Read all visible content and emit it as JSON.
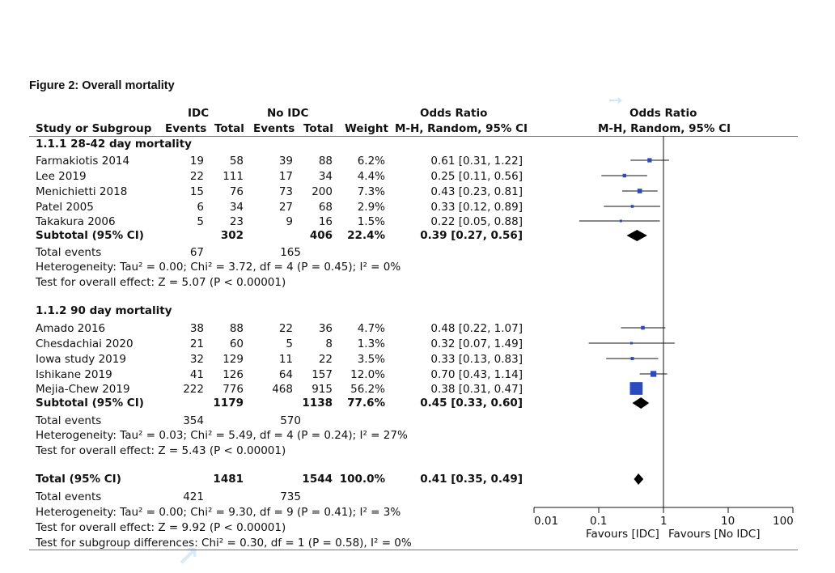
{
  "figure_title": "Figure 2: Overall mortality",
  "headers": {
    "idc": "IDC",
    "no_idc": "No IDC",
    "or_group": "Odds Ratio",
    "or_plot_group": "Odds Ratio",
    "study": "Study or Subgroup",
    "events1": "Events",
    "total1": "Total",
    "events2": "Events",
    "total2": "Total",
    "weight": "Weight",
    "method": "M-H, Random, 95% CI",
    "plot_method": "M-H, Random, 95% CI"
  },
  "subgroups": [
    {
      "title": "1.1.1 28-42 day mortality",
      "studies": [
        {
          "name": "Farmakiotis 2014",
          "e1": "19",
          "t1": "58",
          "e2": "39",
          "t2": "88",
          "weight": "6.2%",
          "ci_text": "0.61 [0.31, 1.22]"
        },
        {
          "name": "Lee 2019",
          "e1": "22",
          "t1": "111",
          "e2": "17",
          "t2": "34",
          "weight": "4.4%",
          "ci_text": "0.25 [0.11, 0.56]"
        },
        {
          "name": "Menichietti 2018",
          "e1": "15",
          "t1": "76",
          "e2": "73",
          "t2": "200",
          "weight": "7.3%",
          "ci_text": "0.43 [0.23, 0.81]"
        },
        {
          "name": "Patel 2005",
          "e1": "6",
          "t1": "34",
          "e2": "27",
          "t2": "68",
          "weight": "2.9%",
          "ci_text": "0.33 [0.12, 0.89]"
        },
        {
          "name": "Takakura 2006",
          "e1": "5",
          "t1": "23",
          "e2": "9",
          "t2": "16",
          "weight": "1.5%",
          "ci_text": "0.22 [0.05, 0.88]"
        }
      ],
      "subtotal": {
        "label": "Subtotal (95% CI)",
        "t1": "302",
        "t2": "406",
        "weight": "22.4%",
        "ci_text": "0.39 [0.27, 0.56]"
      },
      "total_events": {
        "label": "Total events",
        "e1": "67",
        "e2": "165"
      },
      "heterogeneity": "Heterogeneity: Tau² = 0.00; Chi² = 3.72, df = 4 (P = 0.45); I² = 0%",
      "overall_effect": "Test for overall effect: Z = 5.07 (P < 0.00001)"
    },
    {
      "title": "1.1.2 90 day mortality",
      "studies": [
        {
          "name": "Amado 2016",
          "e1": "38",
          "t1": "88",
          "e2": "22",
          "t2": "36",
          "weight": "4.7%",
          "ci_text": "0.48 [0.22, 1.07]"
        },
        {
          "name": "Chesdachiai 2020",
          "e1": "21",
          "t1": "60",
          "e2": "5",
          "t2": "8",
          "weight": "1.3%",
          "ci_text": "0.32 [0.07, 1.49]"
        },
        {
          "name": "Iowa study 2019",
          "e1": "32",
          "t1": "129",
          "e2": "11",
          "t2": "22",
          "weight": "3.5%",
          "ci_text": "0.33 [0.13, 0.83]"
        },
        {
          "name": "Ishikane 2019",
          "e1": "41",
          "t1": "126",
          "e2": "64",
          "t2": "157",
          "weight": "12.0%",
          "ci_text": "0.70 [0.43, 1.14]"
        },
        {
          "name": "Mejia-Chew 2019",
          "e1": "222",
          "t1": "776",
          "e2": "468",
          "t2": "915",
          "weight": "56.2%",
          "ci_text": "0.38 [0.31, 0.47]"
        }
      ],
      "subtotal": {
        "label": "Subtotal (95% CI)",
        "t1": "1179",
        "t2": "1138",
        "weight": "77.6%",
        "ci_text": "0.45 [0.33, 0.60]"
      },
      "total_events": {
        "label": "Total events",
        "e1": "354",
        "e2": "570"
      },
      "heterogeneity": "Heterogeneity: Tau² = 0.03; Chi² = 5.49, df = 4 (P = 0.24); I² = 27%",
      "overall_effect": "Test for overall effect: Z = 5.43 (P < 0.00001)"
    }
  ],
  "total": {
    "label": "Total (95% CI)",
    "t1": "1481",
    "t2": "1544",
    "weight": "100.0%",
    "ci_text": "0.41 [0.35, 0.49]",
    "total_events": {
      "label": "Total events",
      "e1": "421",
      "e2": "735"
    },
    "heterogeneity": "Heterogeneity: Tau² = 0.00; Chi² = 9.30, df = 9 (P = 0.41); I² = 3%",
    "overall_effect": "Test for overall effect: Z = 9.92 (P < 0.00001)",
    "subgroup_diff": "Test for subgroup differences: Chi² = 0.30, df = 1 (P = 0.58), I² = 0%"
  },
  "axis": {
    "tick_labels": [
      "0.01",
      "0.1",
      "1",
      "10",
      "100"
    ],
    "favours_left": "Favours [IDC]",
    "favours_right": "Favours [No IDC]"
  },
  "colors": {
    "marker": "#2a4bbf",
    "diamond": "#000000",
    "text": "#111111"
  },
  "chart_data": {
    "type": "forest",
    "scale": "log",
    "xlim": [
      0.01,
      100
    ],
    "xticks": [
      0.01,
      0.1,
      1,
      10,
      100
    ],
    "null_line": 1,
    "studies": [
      {
        "name": "Farmakiotis 2014",
        "or": 0.61,
        "lo": 0.31,
        "hi": 1.22,
        "weight": 6.2
      },
      {
        "name": "Lee 2019",
        "or": 0.25,
        "lo": 0.11,
        "hi": 0.56,
        "weight": 4.4
      },
      {
        "name": "Menichietti 2018",
        "or": 0.43,
        "lo": 0.23,
        "hi": 0.81,
        "weight": 7.3
      },
      {
        "name": "Patel 2005",
        "or": 0.33,
        "lo": 0.12,
        "hi": 0.89,
        "weight": 2.9
      },
      {
        "name": "Takakura 2006",
        "or": 0.22,
        "lo": 0.05,
        "hi": 0.88,
        "weight": 1.5
      },
      {
        "name": "Amado 2016",
        "or": 0.48,
        "lo": 0.22,
        "hi": 1.07,
        "weight": 4.7
      },
      {
        "name": "Chesdachiai 2020",
        "or": 0.32,
        "lo": 0.07,
        "hi": 1.49,
        "weight": 1.3
      },
      {
        "name": "Iowa study 2019",
        "or": 0.33,
        "lo": 0.13,
        "hi": 0.83,
        "weight": 3.5
      },
      {
        "name": "Ishikane 2019",
        "or": 0.7,
        "lo": 0.43,
        "hi": 1.14,
        "weight": 12.0
      },
      {
        "name": "Mejia-Chew 2019",
        "or": 0.38,
        "lo": 0.31,
        "hi": 0.47,
        "weight": 56.2
      }
    ],
    "pooled": [
      {
        "name": "Subtotal 1.1.1",
        "or": 0.39,
        "lo": 0.27,
        "hi": 0.56
      },
      {
        "name": "Subtotal 1.1.2",
        "or": 0.45,
        "lo": 0.33,
        "hi": 0.6
      },
      {
        "name": "Total",
        "or": 0.41,
        "lo": 0.35,
        "hi": 0.49
      }
    ]
  }
}
